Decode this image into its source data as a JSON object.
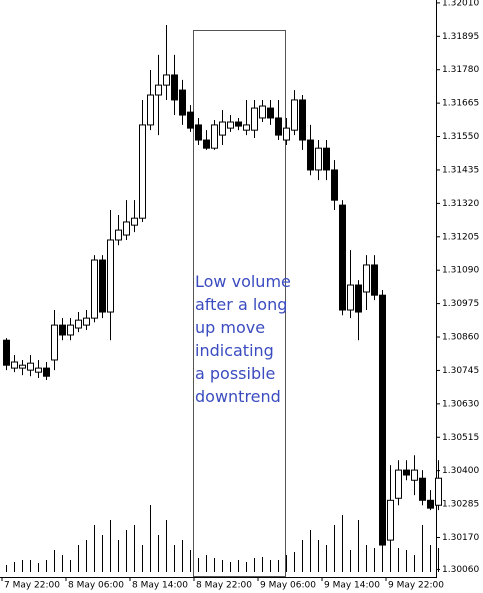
{
  "chart_data": {
    "type": "candlestick",
    "categories": [
      "7 May 22:00",
      null,
      null,
      null,
      null,
      null,
      null,
      null,
      "8 May 06:00",
      null,
      null,
      null,
      null,
      null,
      null,
      null,
      "8 May 14:00",
      null,
      null,
      null,
      null,
      null,
      null,
      null,
      "8 May 22:00",
      null,
      null,
      null,
      null,
      null,
      null,
      null,
      "9 May 06:00",
      null,
      null,
      null,
      null,
      null,
      null,
      null,
      "9 May 14:00",
      null,
      null,
      null,
      null,
      null,
      null,
      null,
      "9 May 22:00",
      null,
      null,
      null,
      null,
      null,
      null
    ],
    "open": [
      1.30849,
      1.30753,
      1.30753,
      1.30746,
      1.30739,
      1.30753,
      1.30781,
      1.30901,
      1.30867,
      1.30891,
      1.30901,
      1.30925,
      1.31125,
      1.30946,
      1.31194,
      1.31211,
      1.31245,
      1.31269,
      1.3159,
      1.31693,
      1.31727,
      1.31762,
      1.3171,
      1.31634,
      1.3159,
      1.31538,
      1.3151,
      1.31555,
      1.31579,
      1.316,
      1.31572,
      1.31572,
      1.31614,
      1.31648,
      1.31614,
      1.31538,
      1.31572,
      1.31676,
      1.31538,
      1.31435,
      1.3151,
      1.31435,
      1.31314,
      1.30953,
      1.31039,
      1.31015,
      1.31108,
      1.31004,
      1.30161,
      1.30305,
      1.30402,
      1.30367,
      1.30374,
      1.30298,
      1.30281
    ],
    "high": [
      1.30856,
      1.30798,
      1.30781,
      1.30798,
      1.30781,
      1.30774,
      1.30953,
      1.30925,
      1.30925,
      1.30946,
      1.30953,
      1.31142,
      1.31142,
      1.31297,
      1.3128,
      1.31331,
      1.31331,
      1.31676,
      1.31779,
      1.31831,
      1.31934,
      1.31831,
      1.31745,
      1.31658,
      1.31614,
      1.31572,
      1.31607,
      1.31641,
      1.31624,
      1.31614,
      1.31676,
      1.31676,
      1.31676,
      1.31676,
      1.31676,
      1.31614,
      1.3171,
      1.31693,
      1.3159,
      1.31538,
      1.31538,
      1.31469,
      1.31331,
      1.31159,
      1.31056,
      1.31142,
      1.31142,
      1.31022,
      1.30419,
      1.30436,
      1.30436,
      1.30453,
      1.30402,
      1.30333,
      1.30436
    ],
    "low": [
      1.30746,
      1.30739,
      1.30729,
      1.30725,
      1.30719,
      1.30712,
      1.30746,
      1.30849,
      1.30849,
      1.30877,
      1.30884,
      1.30911,
      1.30925,
      1.30849,
      1.31176,
      1.31194,
      1.31221,
      1.31256,
      1.31572,
      1.31555,
      1.31676,
      1.31624,
      1.3159,
      1.31566,
      1.31521,
      1.31504,
      1.31504,
      1.31521,
      1.31566,
      1.31572,
      1.31555,
      1.31545,
      1.316,
      1.3159,
      1.31538,
      1.31521,
      1.31555,
      1.31504,
      1.31417,
      1.314,
      1.314,
      1.31297,
      1.30935,
      1.30925,
      1.30849,
      1.30953,
      1.30987,
      1.30133,
      1.30144,
      1.30281,
      1.30367,
      1.30316,
      1.30281,
      1.30264,
      1.30264
    ],
    "close": [
      1.30763,
      1.30774,
      1.30763,
      1.3077,
      1.30753,
      1.30725,
      1.30901,
      1.30867,
      1.30901,
      1.30918,
      1.30925,
      1.31125,
      1.30946,
      1.31194,
      1.31228,
      1.31256,
      1.31269,
      1.3159,
      1.31693,
      1.31727,
      1.31762,
      1.31676,
      1.31624,
      1.31579,
      1.31538,
      1.3151,
      1.3159,
      1.316,
      1.316,
      1.31586,
      1.3159,
      1.31648,
      1.31655,
      1.31614,
      1.31555,
      1.31579,
      1.31676,
      1.31538,
      1.31435,
      1.3151,
      1.31435,
      1.31331,
      1.30953,
      1.31039,
      1.30946,
      1.31108,
      1.31004,
      1.30144,
      1.30298,
      1.30402,
      1.30385,
      1.30402,
      1.30298,
      1.30271,
      1.30374
    ],
    "volume": [
      7,
      10,
      12,
      12,
      9,
      12,
      22,
      17,
      12,
      27,
      32,
      47,
      37,
      52,
      32,
      42,
      47,
      27,
      67,
      37,
      52,
      27,
      32,
      22,
      14,
      17,
      14,
      12,
      10,
      12,
      10,
      14,
      15,
      12,
      12,
      17,
      20,
      32,
      42,
      32,
      27,
      47,
      57,
      22,
      52,
      27,
      24,
      37,
      52,
      24,
      22,
      17,
      47,
      27,
      24
    ],
    "up_color": "#ffffff",
    "down_color": "#000000",
    "ylim": [
      1.30034,
      1.3202
    ],
    "yticks": [
      {
        "value": 1.3201,
        "label": "1.32010"
      },
      1.31895,
      {
        "value": 1.3178,
        "label": "1.31780"
      },
      1.31665,
      {
        "value": 1.3155,
        "label": "1.31550"
      },
      1.31435,
      {
        "value": 1.3132,
        "label": "1.31320"
      },
      1.31205,
      {
        "value": 1.3109,
        "label": "1.31090"
      },
      1.30975,
      {
        "value": 1.3086,
        "label": "1.30860"
      },
      1.30745,
      {
        "value": 1.3063,
        "label": "1.30630"
      },
      1.30515,
      {
        "value": 1.304,
        "label": "1.30400"
      },
      1.30285,
      {
        "value": 1.3017,
        "label": "1.30170"
      },
      {
        "value": 1.3006,
        "label": "1.30060"
      }
    ],
    "annotation": [
      "Low volume",
      "after a long",
      "up move",
      "indicating",
      "a possible",
      "downtrend"
    ]
  }
}
